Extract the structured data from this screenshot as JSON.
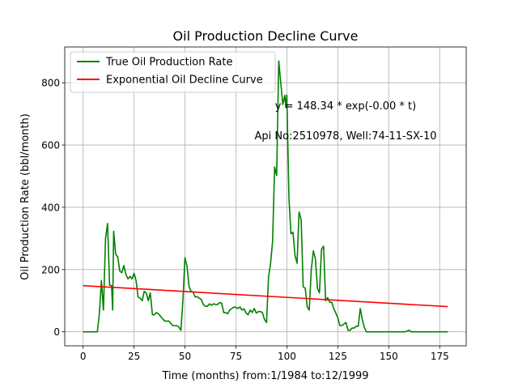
{
  "chart_data": {
    "type": "line",
    "title": "Oil Production Decline Curve",
    "xlabel": "Time (months) from:1/1984 to:12/1999",
    "ylabel": "Oil Production Rate (bbl/month)",
    "xlim": [
      -9,
      188
    ],
    "ylim": [
      -45,
      915
    ],
    "xticks": [
      0,
      25,
      50,
      75,
      100,
      125,
      150,
      175
    ],
    "yticks": [
      0,
      200,
      400,
      600,
      800
    ],
    "grid": true,
    "legend_position": "top-left",
    "annotations": [
      "y = 148.34 * exp(-0.00 * t)",
      "Api No:2510978, Well:74-11-SX-10"
    ],
    "series": [
      {
        "name": "True Oil Production Rate",
        "color": "#008000",
        "points": [
          [
            0,
            0
          ],
          [
            2,
            0
          ],
          [
            4,
            0
          ],
          [
            7,
            0
          ],
          [
            8,
            60
          ],
          [
            9,
            165
          ],
          [
            10,
            70
          ],
          [
            11,
            300
          ],
          [
            12,
            348
          ],
          [
            13,
            150
          ],
          [
            14,
            148
          ],
          [
            14.5,
            70
          ],
          [
            15,
            323
          ],
          [
            16,
            250
          ],
          [
            17,
            240
          ],
          [
            18,
            195
          ],
          [
            19,
            190
          ],
          [
            20,
            213
          ],
          [
            21,
            185
          ],
          [
            22,
            170
          ],
          [
            23,
            178
          ],
          [
            24,
            170
          ],
          [
            25,
            188
          ],
          [
            26,
            165
          ],
          [
            27,
            112
          ],
          [
            28,
            108
          ],
          [
            29,
            100
          ],
          [
            30,
            130
          ],
          [
            31,
            125
          ],
          [
            32,
            100
          ],
          [
            33,
            125
          ],
          [
            34,
            55
          ],
          [
            35,
            55
          ],
          [
            36,
            62
          ],
          [
            37,
            58
          ],
          [
            38,
            50
          ],
          [
            39,
            42
          ],
          [
            40,
            35
          ],
          [
            41,
            34
          ],
          [
            42,
            35
          ],
          [
            43,
            28
          ],
          [
            44,
            20
          ],
          [
            45,
            20
          ],
          [
            46,
            20
          ],
          [
            47,
            15
          ],
          [
            48,
            5
          ],
          [
            49,
            100
          ],
          [
            50,
            238
          ],
          [
            51,
            210
          ],
          [
            52,
            145
          ],
          [
            53,
            130
          ],
          [
            54,
            128
          ],
          [
            55,
            112
          ],
          [
            56,
            113
          ],
          [
            57,
            108
          ],
          [
            58,
            104
          ],
          [
            59,
            88
          ],
          [
            60,
            82
          ],
          [
            61,
            82
          ],
          [
            62,
            90
          ],
          [
            63,
            85
          ],
          [
            64,
            90
          ],
          [
            65,
            88
          ],
          [
            66,
            88
          ],
          [
            67,
            94
          ],
          [
            68,
            92
          ],
          [
            69,
            62
          ],
          [
            70,
            62
          ],
          [
            71,
            58
          ],
          [
            72,
            70
          ],
          [
            73,
            75
          ],
          [
            74,
            80
          ],
          [
            75,
            78
          ],
          [
            76,
            75
          ],
          [
            77,
            80
          ],
          [
            78,
            70
          ],
          [
            79,
            74
          ],
          [
            80,
            60
          ],
          [
            81,
            55
          ],
          [
            82,
            70
          ],
          [
            83,
            62
          ],
          [
            84,
            75
          ],
          [
            85,
            60
          ],
          [
            86,
            65
          ],
          [
            87,
            65
          ],
          [
            88,
            62
          ],
          [
            89,
            40
          ],
          [
            90,
            30
          ],
          [
            91,
            175
          ],
          [
            92,
            220
          ],
          [
            93,
            290
          ],
          [
            94,
            530
          ],
          [
            95,
            502
          ],
          [
            96,
            870
          ],
          [
            97,
            800
          ],
          [
            98,
            730
          ],
          [
            99,
            760
          ],
          [
            99.5,
            720
          ],
          [
            100,
            760
          ],
          [
            101,
            430
          ],
          [
            102,
            315
          ],
          [
            103,
            320
          ],
          [
            104,
            245
          ],
          [
            105,
            220
          ],
          [
            106,
            385
          ],
          [
            107,
            360
          ],
          [
            108,
            145
          ],
          [
            109,
            140
          ],
          [
            110,
            80
          ],
          [
            111,
            70
          ],
          [
            112,
            200
          ],
          [
            113,
            260
          ],
          [
            114,
            235
          ],
          [
            115,
            140
          ],
          [
            116,
            125
          ],
          [
            117,
            265
          ],
          [
            118,
            275
          ],
          [
            119,
            100
          ],
          [
            120,
            110
          ],
          [
            121,
            95
          ],
          [
            122,
            95
          ],
          [
            123,
            75
          ],
          [
            124,
            60
          ],
          [
            125,
            45
          ],
          [
            126,
            20
          ],
          [
            127,
            20
          ],
          [
            128,
            25
          ],
          [
            129,
            30
          ],
          [
            130,
            5
          ],
          [
            131,
            5
          ],
          [
            132,
            12
          ],
          [
            133,
            12
          ],
          [
            134,
            18
          ],
          [
            135,
            18
          ],
          [
            136,
            75
          ],
          [
            137,
            40
          ],
          [
            138,
            15
          ],
          [
            139,
            0
          ],
          [
            142,
            0
          ],
          [
            150,
            0
          ],
          [
            158,
            0
          ],
          [
            159,
            3
          ],
          [
            160,
            5
          ],
          [
            161,
            0
          ],
          [
            170,
            0
          ],
          [
            179,
            0
          ]
        ]
      },
      {
        "name": "Exponential Oil Decline Curve",
        "color": "#ff0000",
        "points": [
          [
            0,
            148.34
          ],
          [
            179,
            81
          ]
        ]
      }
    ]
  }
}
